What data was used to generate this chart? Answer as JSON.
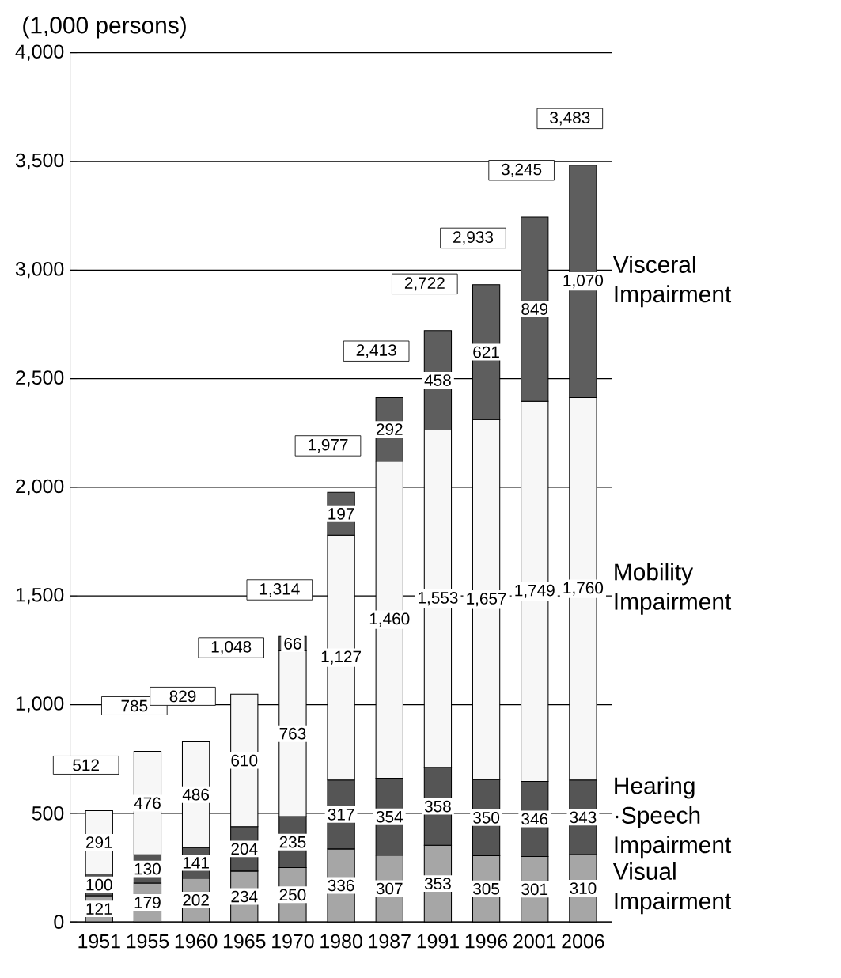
{
  "chart_data": {
    "type": "bar",
    "stacked": true,
    "ylabel": "(1,000 persons)",
    "categories": [
      "1951",
      "1955",
      "1960",
      "1965",
      "1970",
      "1980",
      "1987",
      "1991",
      "1996",
      "2001",
      "2006"
    ],
    "series": [
      {
        "name": "Visual Impairment",
        "color": "#a6a6a6",
        "values": [
          121,
          179,
          202,
          234,
          250,
          336,
          307,
          353,
          305,
          301,
          310
        ],
        "value_labels": [
          "121",
          "179",
          "202",
          "234",
          "250",
          "336",
          "307",
          "353",
          "305",
          "301",
          "310"
        ]
      },
      {
        "name": "Hearing ·Speech Impairment",
        "color": "#555555",
        "values": [
          100,
          130,
          141,
          204,
          235,
          317,
          354,
          358,
          350,
          346,
          343
        ],
        "value_labels": [
          "100",
          "130",
          "141",
          "204",
          "235",
          "317",
          "354",
          "358",
          "350",
          "346",
          "343"
        ]
      },
      {
        "name": "Mobility Impairment",
        "color": "#f7f7f7",
        "values": [
          291,
          476,
          486,
          610,
          763,
          1127,
          1460,
          1553,
          1657,
          1749,
          1760
        ],
        "value_labels": [
          "291",
          "476",
          "486",
          "610",
          "763",
          "1,127",
          "1,460",
          "1,553",
          "1,657",
          "1,749",
          "1,760"
        ]
      },
      {
        "name": "Visceral Impairment",
        "color": "#5e5e5e",
        "values": [
          null,
          null,
          null,
          null,
          66,
          197,
          292,
          458,
          621,
          849,
          1070
        ],
        "value_labels": [
          null,
          null,
          null,
          null,
          "66",
          "197",
          "292",
          "458",
          "621",
          "849",
          "1,070"
        ]
      }
    ],
    "totals": [
      "512",
      "785",
      "829",
      "1,048",
      "1,314",
      "1,977",
      "2,413",
      "2,722",
      "2,933",
      "3,245",
      "3,483"
    ],
    "ylim": [
      0,
      4000
    ],
    "yticks": [
      0,
      {
        "value": 500,
        "label": "500"
      },
      {
        "value": 1000,
        "label": "1,000"
      },
      {
        "value": 1500,
        "label": "1,500"
      },
      {
        "value": 2000,
        "label": "2,000"
      },
      {
        "value": 2500,
        "label": "2,500"
      },
      {
        "value": 3000,
        "label": "3,000"
      },
      {
        "value": 3500,
        "label": "3,500"
      },
      {
        "value": 4000,
        "label": "4,000"
      }
    ],
    "grid": "y",
    "legend": false
  }
}
